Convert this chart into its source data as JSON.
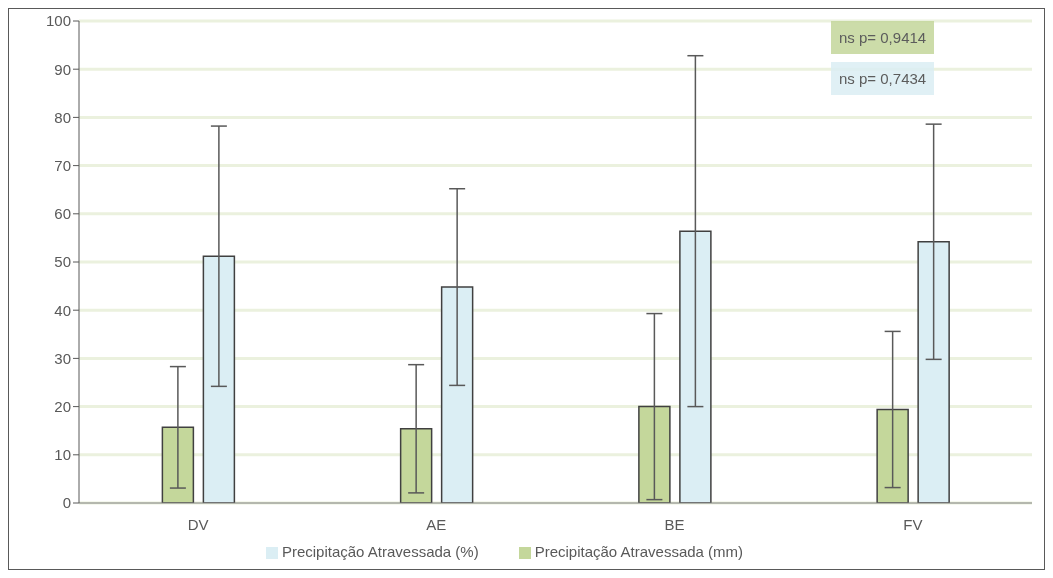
{
  "chart_data": {
    "type": "bar",
    "categories": [
      "DV",
      "AE",
      "BE",
      "FV"
    ],
    "series": [
      {
        "name": "Precipitação Atravessada (mm)",
        "color": "#c4d79b",
        "values": [
          15.7,
          15.4,
          20.0,
          19.4
        ],
        "errors": [
          12.6,
          13.3,
          19.3,
          16.2
        ]
      },
      {
        "name": "Precipitação Atravessada (%)",
        "color": "#dbeef4",
        "values": [
          51.2,
          44.8,
          56.4,
          54.2
        ],
        "errors": [
          27.0,
          20.4,
          36.4,
          24.4
        ]
      }
    ],
    "ylim": [
      0,
      100
    ],
    "yticks": [
      0,
      10,
      20,
      30,
      40,
      50,
      60,
      70,
      80,
      90,
      100
    ],
    "grid": "y",
    "legend": "bottom",
    "annotations": [
      "ns p= 0,9414",
      "ns p= 0,7434"
    ]
  }
}
